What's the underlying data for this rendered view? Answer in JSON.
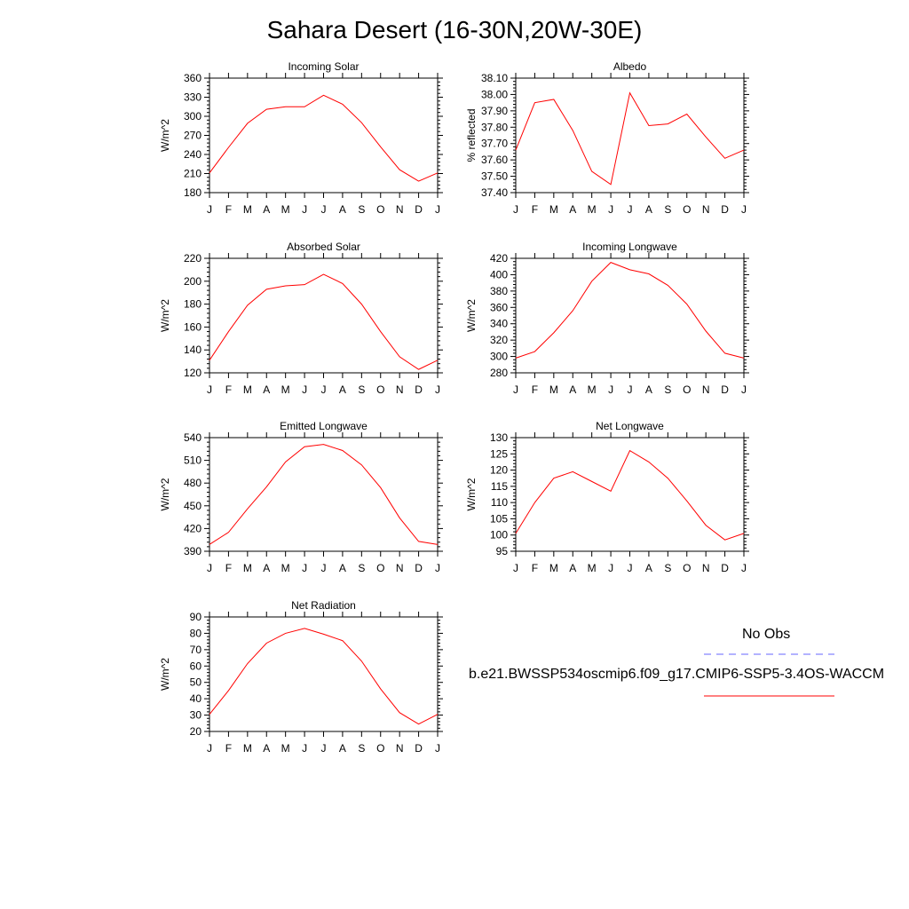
{
  "title": "Sahara Desert (16-30N,20W-30E)",
  "legend": {
    "entries": [
      {
        "label": "No Obs",
        "color": "#6666ff",
        "style": "dashed"
      },
      {
        "label": "b.e21.BWSSP534oscmip6.f09_g17.CMIP6-SSP5-3.4OS-WACCM",
        "color": "#ff0000",
        "style": "solid"
      }
    ]
  },
  "chart_data": [
    {
      "type": "line",
      "title": "Incoming Solar",
      "ylabel": "W/m^2",
      "xlabel": "",
      "x": [
        "J",
        "F",
        "M",
        "A",
        "M",
        "J",
        "J",
        "A",
        "S",
        "O",
        "N",
        "D",
        "J"
      ],
      "ylim": [
        180,
        360
      ],
      "yticks": [
        "180",
        "210",
        "240",
        "270",
        "300",
        "330",
        "360"
      ],
      "series": [
        {
          "name": "b.e21.BWSSP534oscmip6.f09_g17.CMIP6-SSP5-3.4OS-WACCM",
          "color": "#ff0000",
          "values": [
            211,
            251,
            289,
            311,
            315,
            315,
            333,
            319,
            290,
            252,
            216,
            198,
            211
          ]
        }
      ]
    },
    {
      "type": "line",
      "title": "Albedo",
      "ylabel": "% reflected",
      "xlabel": "",
      "x": [
        "J",
        "F",
        "M",
        "A",
        "M",
        "J",
        "J",
        "A",
        "S",
        "O",
        "N",
        "D",
        "J"
      ],
      "ylim": [
        37.4,
        38.1
      ],
      "yticks": [
        "37.40",
        "37.50",
        "37.60",
        "37.70",
        "37.80",
        "37.90",
        "38.00",
        "38.10"
      ],
      "series": [
        {
          "name": "b.e21.BWSSP534oscmip6.f09_g17.CMIP6-SSP5-3.4OS-WACCM",
          "color": "#ff0000",
          "values": [
            37.66,
            37.95,
            37.97,
            37.78,
            37.53,
            37.45,
            38.01,
            37.81,
            37.82,
            37.88,
            37.74,
            37.61,
            37.66
          ]
        }
      ]
    },
    {
      "type": "line",
      "title": "Absorbed Solar",
      "ylabel": "W/m^2",
      "xlabel": "",
      "x": [
        "J",
        "F",
        "M",
        "A",
        "M",
        "J",
        "J",
        "A",
        "S",
        "O",
        "N",
        "D",
        "J"
      ],
      "ylim": [
        120,
        220
      ],
      "yticks": [
        "120",
        "140",
        "160",
        "180",
        "200",
        "220"
      ],
      "series": [
        {
          "name": "b.e21.BWSSP534oscmip6.f09_g17.CMIP6-SSP5-3.4OS-WACCM",
          "color": "#ff0000",
          "values": [
            131,
            156,
            179,
            193,
            196,
            197,
            206,
            198,
            180,
            156,
            134,
            123,
            131
          ]
        }
      ]
    },
    {
      "type": "line",
      "title": "Incoming Longwave",
      "ylabel": "W/m^2",
      "xlabel": "",
      "x": [
        "J",
        "F",
        "M",
        "A",
        "M",
        "J",
        "J",
        "A",
        "S",
        "O",
        "N",
        "D",
        "J"
      ],
      "ylim": [
        280,
        420
      ],
      "yticks": [
        "280",
        "300",
        "320",
        "340",
        "360",
        "380",
        "400",
        "420"
      ],
      "series": [
        {
          "name": "b.e21.BWSSP534oscmip6.f09_g17.CMIP6-SSP5-3.4OS-WACCM",
          "color": "#ff0000",
          "values": [
            298,
            306,
            329,
            356,
            392,
            415,
            406,
            401,
            387,
            364,
            331,
            304,
            298
          ]
        }
      ]
    },
    {
      "type": "line",
      "title": "Emitted Longwave",
      "ylabel": "W/m^2",
      "xlabel": "",
      "x": [
        "J",
        "F",
        "M",
        "A",
        "M",
        "J",
        "J",
        "A",
        "S",
        "O",
        "N",
        "D",
        "J"
      ],
      "ylim": [
        390,
        540
      ],
      "yticks": [
        "390",
        "420",
        "450",
        "480",
        "510",
        "540"
      ],
      "series": [
        {
          "name": "b.e21.BWSSP534oscmip6.f09_g17.CMIP6-SSP5-3.4OS-WACCM",
          "color": "#ff0000",
          "values": [
            399,
            415,
            446,
            475,
            508,
            528,
            531,
            523,
            504,
            474,
            434,
            403,
            399
          ]
        }
      ]
    },
    {
      "type": "line",
      "title": "Net Longwave",
      "ylabel": "W/m^2",
      "xlabel": "",
      "x": [
        "J",
        "F",
        "M",
        "A",
        "M",
        "J",
        "J",
        "A",
        "S",
        "O",
        "N",
        "D",
        "J"
      ],
      "ylim": [
        95,
        130
      ],
      "yticks": [
        "95",
        "100",
        "105",
        "110",
        "115",
        "120",
        "125",
        "130"
      ],
      "series": [
        {
          "name": "b.e21.BWSSP534oscmip6.f09_g17.CMIP6-SSP5-3.4OS-WACCM",
          "color": "#ff0000",
          "values": [
            100.5,
            110,
            117.5,
            119.5,
            116.5,
            113.5,
            126,
            122.5,
            117.5,
            110.5,
            103,
            98.5,
            100.5
          ]
        }
      ]
    },
    {
      "type": "line",
      "title": "Net Radiation",
      "ylabel": "W/m^2",
      "xlabel": "",
      "x": [
        "J",
        "F",
        "M",
        "A",
        "M",
        "J",
        "J",
        "A",
        "S",
        "O",
        "N",
        "D",
        "J"
      ],
      "ylim": [
        20,
        90
      ],
      "yticks": [
        "20",
        "30",
        "40",
        "50",
        "60",
        "70",
        "80",
        "90"
      ],
      "series": [
        {
          "name": "b.e21.BWSSP534oscmip6.f09_g17.CMIP6-SSP5-3.4OS-WACCM",
          "color": "#ff0000",
          "values": [
            30.5,
            45,
            61.5,
            74,
            80,
            83,
            79.5,
            75.5,
            63,
            46,
            31.5,
            24.5,
            30.5
          ]
        }
      ]
    }
  ]
}
